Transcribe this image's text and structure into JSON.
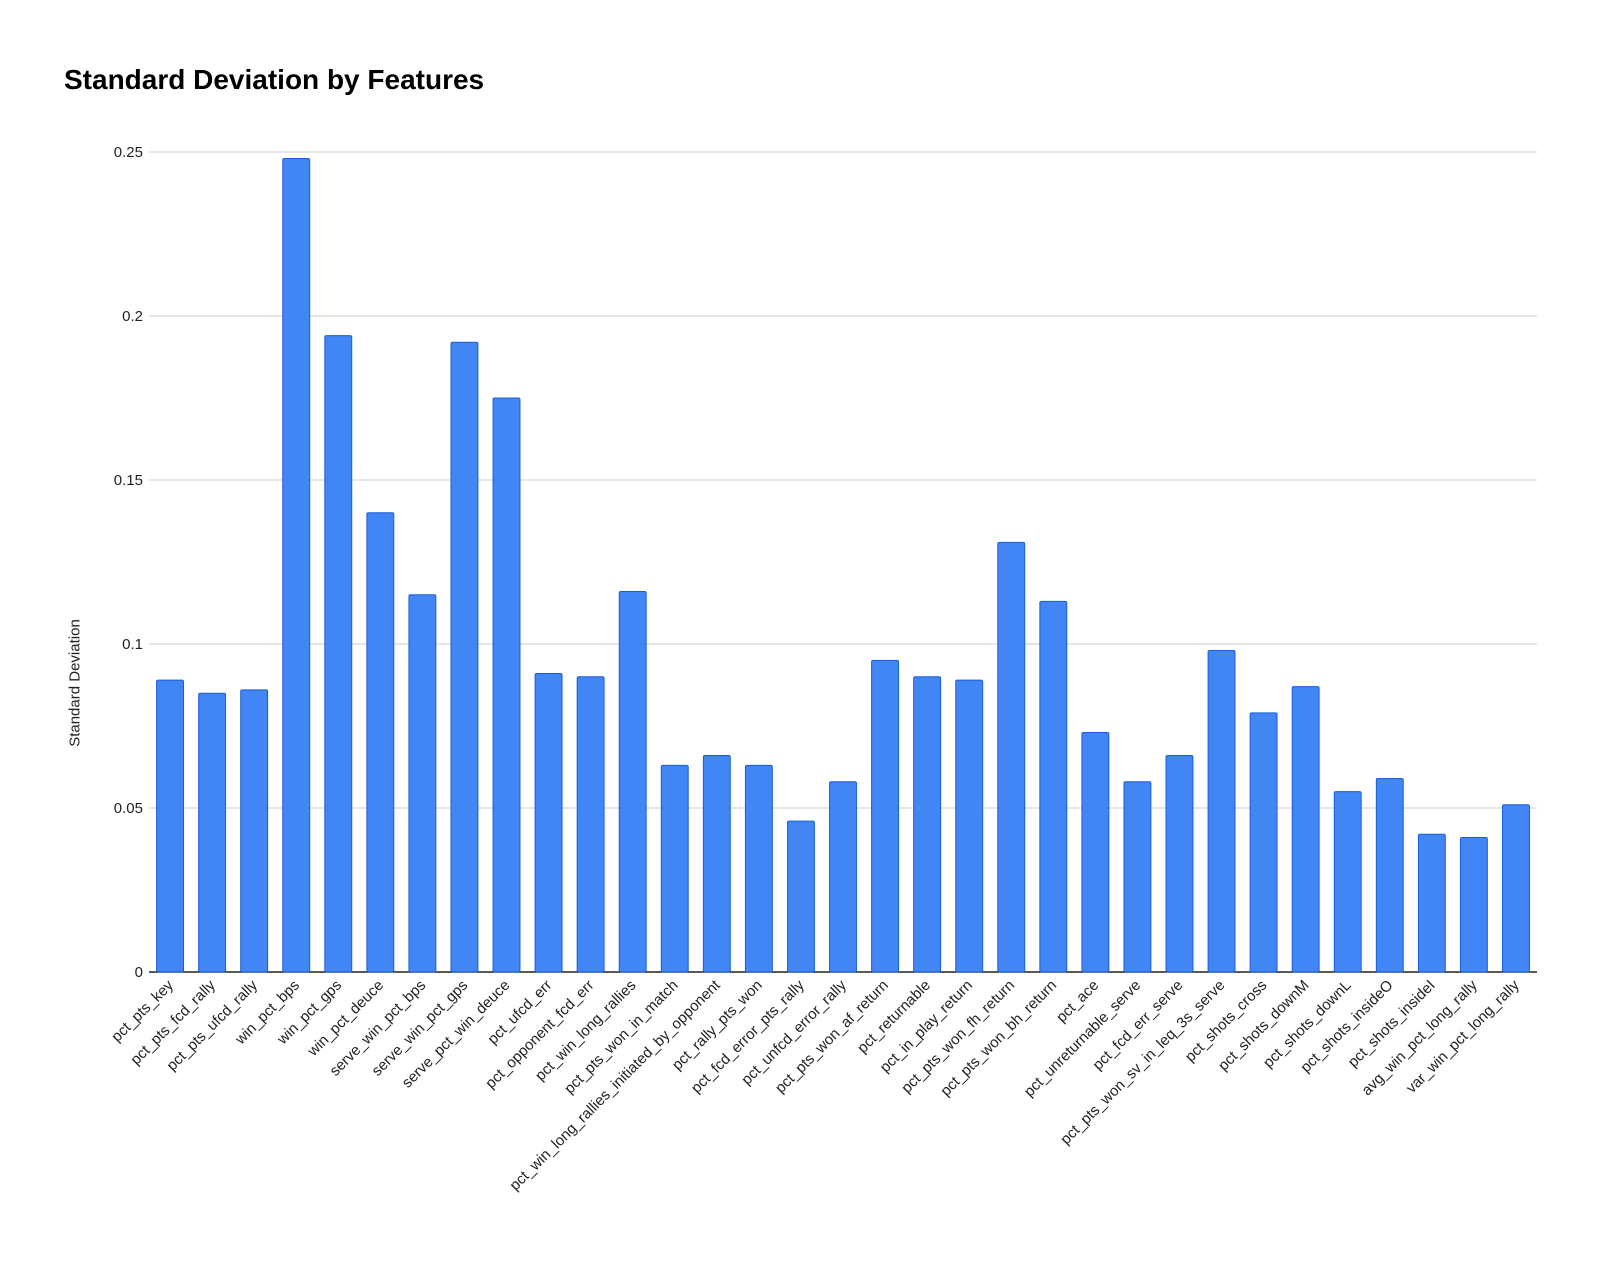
{
  "chart_data": {
    "type": "bar",
    "title": "Standard Deviation by Features",
    "xlabel": "",
    "ylabel": "Standard Deviation",
    "ylim": [
      0,
      0.25
    ],
    "yticks": [
      "0",
      "0.05",
      "0.1",
      "0.15",
      "0.2",
      "0.25"
    ],
    "grid": true,
    "legend": "none",
    "bar_color": "#4285F4",
    "bar_edge_color": "#1a5fd6",
    "grid_color": "#cccccc",
    "categories": [
      "pct_pts_key",
      "pct_pts_fcd_rally",
      "pct_pts_ufcd_rally",
      "win_pct_bps",
      "win_pct_gps",
      "win_pct_deuce",
      "serve_win_pct_bps",
      "serve_win_pct_gps",
      "serve_pct_win_deuce",
      "pct_ufcd_err",
      "pct_opponent_fcd_err",
      "pct_win_long_rallies",
      "pct_pts_won_in_match",
      "pct_win_long_rallies_initiated_by_opponent",
      "pct_rally_pts_won",
      "pct_fcd_error_pts_rally",
      "pct_unfcd_error_rally",
      "pct_pts_won_af_return",
      "pct_returnable",
      "pct_in_play_return",
      "pct_pts_won_fh_return",
      "pct_pts_won_bh_return",
      "pct_ace",
      "pct_unreturnable_serve",
      "pct_fcd_err_serve",
      "pct_pts_won_sv_in_leq_3s_serve",
      "pct_shots_cross",
      "pct_shots_downM",
      "pct_shots_downL",
      "pct_shots_insideO",
      "pct_shots_insideI",
      "avg_win_pct_long_rally",
      "var_win_pct_long_rally"
    ],
    "values": [
      0.089,
      0.085,
      0.086,
      0.248,
      0.194,
      0.14,
      0.115,
      0.192,
      0.175,
      0.091,
      0.09,
      0.116,
      0.063,
      0.066,
      0.063,
      0.046,
      0.058,
      0.095,
      0.09,
      0.089,
      0.131,
      0.113,
      0.073,
      0.058,
      0.066,
      0.098,
      0.079,
      0.087,
      0.055,
      0.059,
      0.042,
      0.041,
      0.051
    ]
  }
}
